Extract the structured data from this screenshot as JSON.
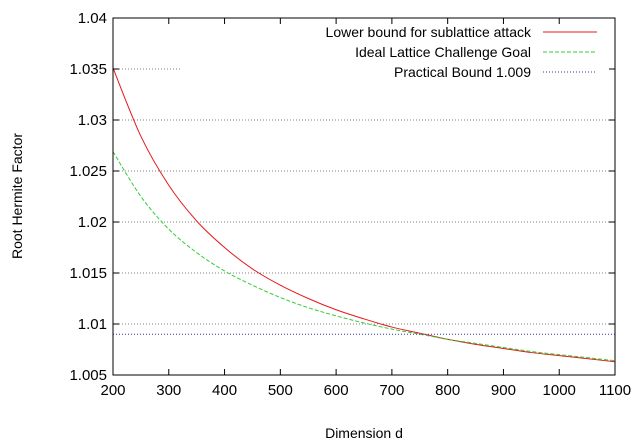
{
  "chart_data": {
    "type": "line",
    "title": "",
    "xlabel": "Dimension d",
    "ylabel": "Root Hermite Factor",
    "xlim": [
      200,
      1100
    ],
    "ylim": [
      1.005,
      1.04
    ],
    "xticks": [
      "200",
      "300",
      "400",
      "500",
      "600",
      "700",
      "800",
      "900",
      "1000",
      "1100"
    ],
    "yticks": [
      "1.005",
      "1.01",
      "1.015",
      "1.02",
      "1.025",
      "1.03",
      "1.035",
      "1.04"
    ],
    "grid": "horizontal dotted",
    "legend_position": "top-right",
    "series": [
      {
        "name": "Lower bound for sublattice attack",
        "color": "#e41a1c",
        "style": "solid",
        "x": [
          200,
          250,
          300,
          350,
          400,
          450,
          500,
          550,
          600,
          650,
          700,
          750,
          800,
          850,
          900,
          950,
          1000,
          1050,
          1100
        ],
        "y": [
          1.0351,
          1.0284,
          1.0236,
          1.0201,
          1.0175,
          1.0154,
          1.0138,
          1.0125,
          1.0114,
          1.0105,
          1.0097,
          1.0091,
          1.0085,
          1.008,
          1.0076,
          1.0072,
          1.0069,
          1.0066,
          1.0063
        ]
      },
      {
        "name": "Ideal Lattice Challenge Goal",
        "color": "#33cc33",
        "style": "dashed",
        "x": [
          200,
          250,
          300,
          350,
          400,
          450,
          500,
          550,
          600,
          650,
          700,
          750,
          800,
          850,
          900,
          950,
          1000,
          1050,
          1100
        ],
        "y": [
          1.0269,
          1.0225,
          1.0193,
          1.017,
          1.0152,
          1.0138,
          1.0126,
          1.0116,
          1.0108,
          1.0101,
          1.0095,
          1.009,
          1.0085,
          1.0081,
          1.0077,
          1.0073,
          1.007,
          1.0067,
          1.0064
        ]
      },
      {
        "name": "Practical Bound 1.009",
        "color": "#3333aa",
        "style": "dotted",
        "x": [
          200,
          1100
        ],
        "y": [
          1.009,
          1.009
        ]
      }
    ]
  }
}
